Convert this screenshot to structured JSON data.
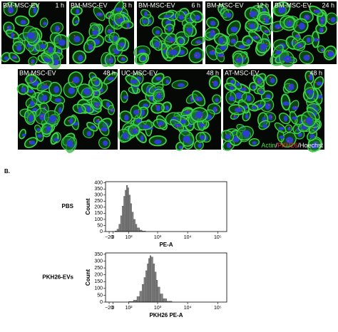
{
  "figure_a": {
    "panels": [
      {
        "label": "BM-MSC-EV",
        "time": "1 h"
      },
      {
        "label": "BM-MSC-EV",
        "time": "3 h"
      },
      {
        "label": "BM-MSC-EV",
        "time": "6 h"
      },
      {
        "label": "BM-MSC-EV",
        "time": "12 h"
      },
      {
        "label": "BM-MSC-EV",
        "time": "24 h"
      },
      {
        "label": "BM-MSC-EV",
        "time": "48 h"
      },
      {
        "label": "UC-MSC-EV",
        "time": "48 h"
      },
      {
        "label": "AT-MSC-EV",
        "time": "48 h"
      }
    ],
    "legend": [
      {
        "text": "Actin",
        "color": "#44dd44"
      },
      {
        "text": "/",
        "color": "#ffffff"
      },
      {
        "text": "PKH26",
        "color": "#ff3333"
      },
      {
        "text": "/Hoechst",
        "color": "#ffffff"
      }
    ]
  },
  "figure_b_label": "B.",
  "chart_data": [
    {
      "type": "histogram",
      "row_label": "PBS",
      "y_label": "Count",
      "x_label": "PE-A",
      "x_scale": "biexponential",
      "color": "#808080",
      "bins": [
        10,
        20,
        30,
        40,
        50,
        60,
        70,
        80,
        90,
        100,
        115,
        130,
        150,
        175,
        200,
        250,
        300,
        400
      ],
      "values": [
        5,
        20,
        60,
        130,
        210,
        290,
        340,
        380,
        360,
        300,
        230,
        160,
        100,
        60,
        30,
        12,
        4
      ],
      "xlim": [
        -40,
        200000
      ],
      "ylim": [
        0,
        410
      ],
      "xticks": [
        {
          "value": -20,
          "label": "−20"
        },
        0,
        {
          "value": 100,
          "label": "10²"
        },
        {
          "value": 1000,
          "label": "10³"
        },
        {
          "value": 10000,
          "label": "10⁴"
        },
        {
          "value": 100000,
          "label": "10⁵"
        }
      ],
      "yticks": [
        0,
        50,
        100,
        150,
        200,
        250,
        300,
        350,
        400
      ]
    },
    {
      "type": "histogram",
      "row_label": "PKH26-EVs",
      "y_label": "Count",
      "x_label": "PKH26 PE-A",
      "x_scale": "biexponential",
      "color": "#808080",
      "bins": [
        100,
        150,
        200,
        250,
        300,
        350,
        400,
        450,
        500,
        550,
        600,
        700,
        800,
        900,
        1000,
        1200,
        1500,
        2000,
        3000
      ],
      "values": [
        5,
        15,
        40,
        80,
        130,
        180,
        230,
        280,
        320,
        340,
        330,
        280,
        220,
        160,
        110,
        60,
        25,
        6
      ],
      "xlim": [
        -40,
        200000
      ],
      "ylim": [
        0,
        360
      ],
      "xticks": [
        {
          "value": -20,
          "label": "−20"
        },
        0,
        {
          "value": 100,
          "label": "10²"
        },
        {
          "value": 1000,
          "label": "10³"
        },
        {
          "value": 10000,
          "label": "10⁴"
        },
        {
          "value": 100000,
          "label": "10⁵"
        }
      ],
      "yticks": [
        0,
        50,
        100,
        150,
        200,
        250,
        300,
        350
      ]
    }
  ]
}
